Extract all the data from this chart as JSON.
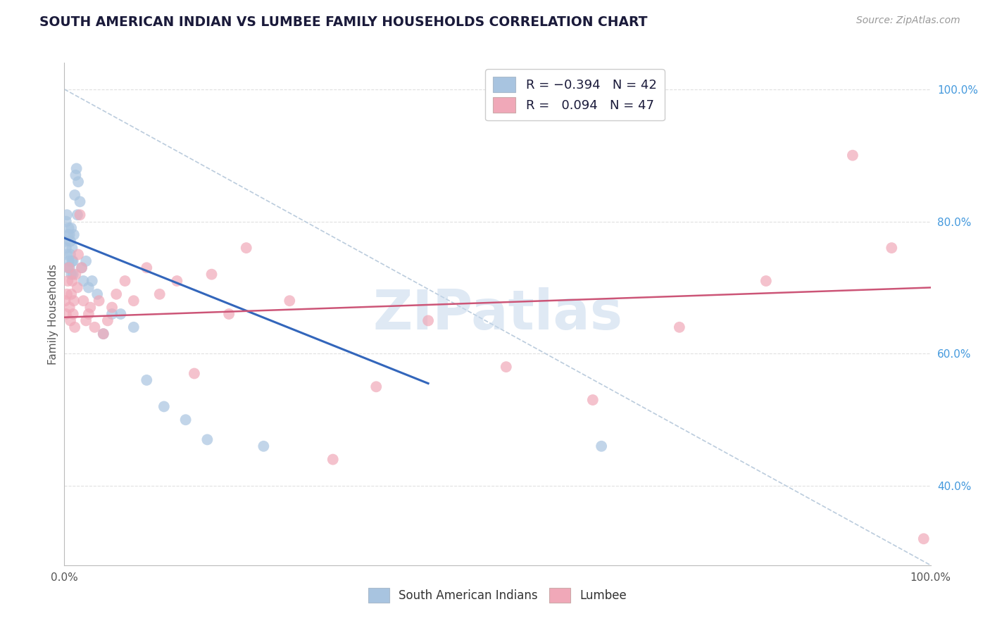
{
  "title": "SOUTH AMERICAN INDIAN VS LUMBEE FAMILY HOUSEHOLDS CORRELATION CHART",
  "source_text": "Source: ZipAtlas.com",
  "ylabel": "Family Households",
  "blue_r": -0.394,
  "blue_n": 42,
  "pink_r": 0.094,
  "pink_n": 47,
  "blue_color": "#a8c4e0",
  "pink_color": "#f0a8b8",
  "blue_line_color": "#3366bb",
  "pink_line_color": "#cc5577",
  "dashed_line_color": "#bbccdd",
  "grid_color": "#dddddd",
  "watermark_color": "#c5d8ec",
  "right_tick_color": "#4499dd",
  "title_color": "#1a1a3a",
  "source_color": "#999999",
  "ylabel_color": "#555555",
  "xtick_color": "#555555",
  "xlim": [
    0.0,
    1.0
  ],
  "ylim": [
    0.28,
    1.04
  ],
  "yticks": [
    0.4,
    0.6,
    0.8,
    1.0
  ],
  "ytick_labels": [
    "40.0%",
    "60.0%",
    "80.0%",
    "100.0%"
  ],
  "xticks": [
    0.0,
    1.0
  ],
  "xtick_labels": [
    "0.0%",
    "100.0%"
  ],
  "blue_scatter_x": [
    0.001,
    0.002,
    0.002,
    0.003,
    0.003,
    0.004,
    0.004,
    0.005,
    0.005,
    0.006,
    0.006,
    0.007,
    0.007,
    0.008,
    0.008,
    0.009,
    0.009,
    0.01,
    0.01,
    0.011,
    0.012,
    0.013,
    0.014,
    0.015,
    0.016,
    0.018,
    0.02,
    0.022,
    0.025,
    0.028,
    0.032,
    0.038,
    0.045,
    0.055,
    0.065,
    0.08,
    0.095,
    0.115,
    0.14,
    0.165,
    0.23,
    0.62
  ],
  "blue_scatter_y": [
    0.77,
    0.8,
    0.76,
    0.81,
    0.75,
    0.73,
    0.78,
    0.79,
    0.74,
    0.78,
    0.73,
    0.75,
    0.77,
    0.79,
    0.72,
    0.74,
    0.76,
    0.74,
    0.72,
    0.78,
    0.84,
    0.87,
    0.88,
    0.81,
    0.86,
    0.83,
    0.73,
    0.71,
    0.74,
    0.7,
    0.71,
    0.69,
    0.63,
    0.66,
    0.66,
    0.64,
    0.56,
    0.52,
    0.5,
    0.47,
    0.46,
    0.46
  ],
  "pink_scatter_x": [
    0.001,
    0.002,
    0.003,
    0.004,
    0.005,
    0.006,
    0.007,
    0.008,
    0.009,
    0.01,
    0.011,
    0.012,
    0.013,
    0.015,
    0.016,
    0.018,
    0.02,
    0.022,
    0.025,
    0.028,
    0.03,
    0.035,
    0.04,
    0.045,
    0.05,
    0.055,
    0.06,
    0.07,
    0.08,
    0.095,
    0.11,
    0.13,
    0.15,
    0.17,
    0.19,
    0.21,
    0.26,
    0.31,
    0.36,
    0.42,
    0.51,
    0.61,
    0.71,
    0.81,
    0.91,
    0.955,
    0.992
  ],
  "pink_scatter_y": [
    0.68,
    0.66,
    0.69,
    0.71,
    0.73,
    0.67,
    0.65,
    0.69,
    0.71,
    0.66,
    0.68,
    0.64,
    0.72,
    0.7,
    0.75,
    0.81,
    0.73,
    0.68,
    0.65,
    0.66,
    0.67,
    0.64,
    0.68,
    0.63,
    0.65,
    0.67,
    0.69,
    0.71,
    0.68,
    0.73,
    0.69,
    0.71,
    0.57,
    0.72,
    0.66,
    0.76,
    0.68,
    0.44,
    0.55,
    0.65,
    0.58,
    0.53,
    0.64,
    0.71,
    0.9,
    0.76,
    0.32
  ],
  "blue_line_x": [
    0.0,
    0.42
  ],
  "blue_line_y": [
    0.775,
    0.555
  ],
  "pink_line_x": [
    0.0,
    1.0
  ],
  "pink_line_y": [
    0.655,
    0.7
  ],
  "dash_line_x": [
    0.0,
    1.0
  ],
  "dash_line_y": [
    1.0,
    0.28
  ]
}
